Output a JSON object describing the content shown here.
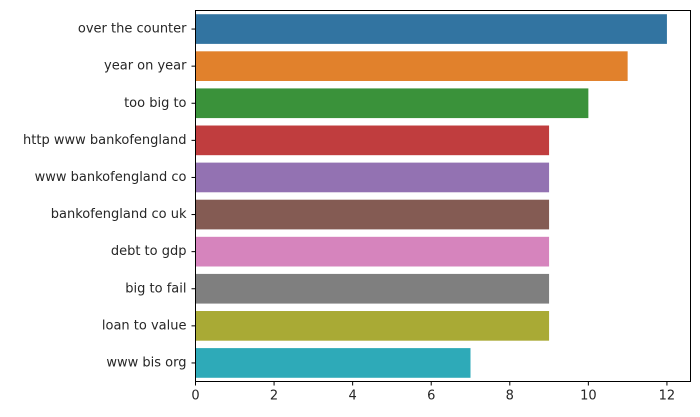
{
  "chart_data": {
    "type": "bar",
    "orientation": "horizontal",
    "title": "",
    "xlabel": "",
    "ylabel": "",
    "categories": [
      "over the counter",
      "year on year",
      "too big to",
      "http www bankofengland",
      "www bankofengland co",
      "bankofengland co uk",
      "debt to gdp",
      "big to fail",
      "loan to value",
      "www bis org"
    ],
    "values": [
      12,
      11,
      10,
      9,
      9,
      9,
      9,
      9,
      9,
      7
    ],
    "colors": [
      "#3274a1",
      "#e1812c",
      "#3a923a",
      "#c03d3e",
      "#9372b2",
      "#845b53",
      "#d684bd",
      "#7f7f7f",
      "#a9aa35",
      "#2eaab8"
    ],
    "xlim": [
      0,
      12.6
    ],
    "xticks": [
      0,
      2,
      4,
      6,
      8,
      10,
      12
    ],
    "grid": false,
    "legend": "none"
  }
}
